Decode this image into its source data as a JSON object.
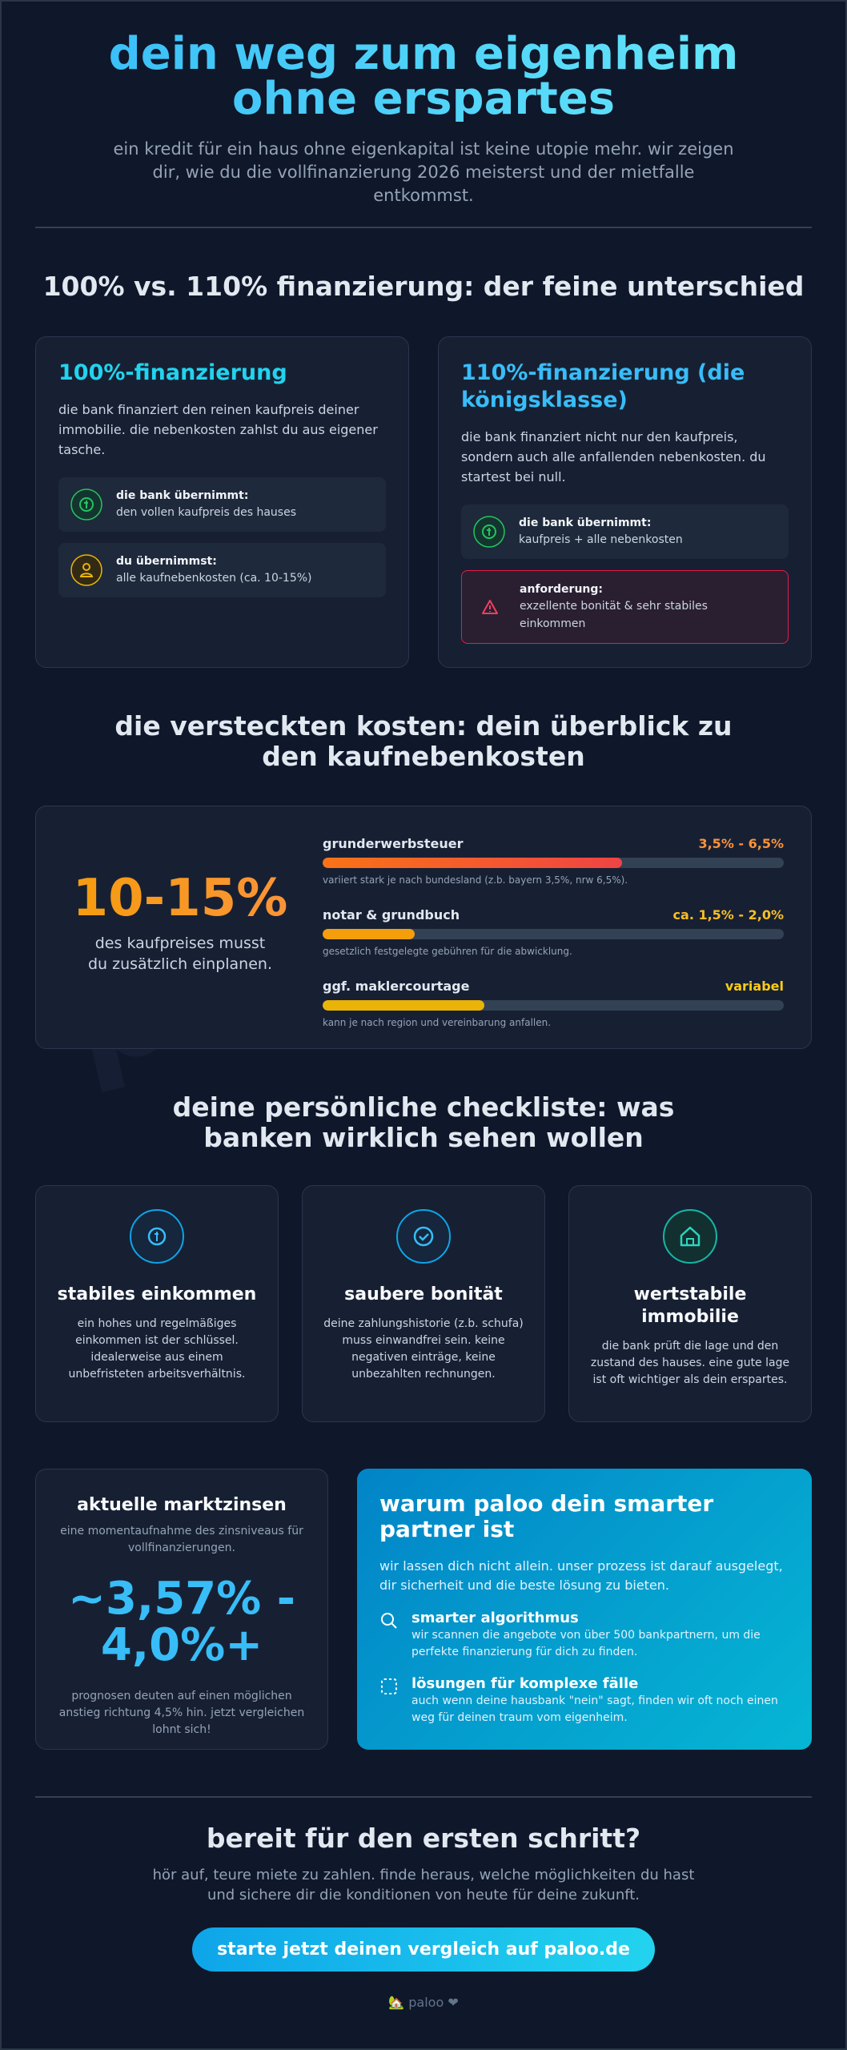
{
  "header": {
    "title": "dein weg zum eigenheim ohne erspartes",
    "subtitle": "ein kredit für ein haus ohne eigenkapital ist keine utopie mehr. wir zeigen dir, wie du die vollfinanzierung 2026 meisterst und der mietfalle entkommst."
  },
  "comparison": {
    "heading": "100% vs. 110% finanzierung: der feine unterschied",
    "cards": [
      {
        "title": "100%-finanzierung",
        "text": "die bank finanziert den reinen kaufpreis deiner immobilie. die nebenkosten zahlst du aus eigener tasche.",
        "items": [
          {
            "label": "die bank übernimmt:",
            "text": "den vollen kaufpreis des hauses"
          },
          {
            "label": "du übernimmst:",
            "text": "alle kaufnebenkosten (ca. 10-15%)"
          }
        ]
      },
      {
        "title": "110%-finanzierung (die königsklasse)",
        "text": "die bank finanziert nicht nur den kaufpreis, sondern auch alle anfallenden nebenkosten. du startest bei null.",
        "items": [
          {
            "label": "die bank übernimmt:",
            "text": "kaufpreis + alle nebenkosten"
          },
          {
            "label": "anforderung:",
            "text": "exzellente bonität & sehr stabiles einkommen"
          }
        ]
      }
    ]
  },
  "costs": {
    "heading": "die versteckten kosten: dein überblick zu den kaufnebenkosten",
    "big_value": "10-15%",
    "big_caption": "des kaufpreises musst du zusätzlich einplanen.",
    "items": [
      {
        "name": "grunderwerbsteuer",
        "range": "3,5% - 6,5%",
        "note": "variiert stark je nach bundesland (z.b. bayern 3,5%, nrw 6,5%)."
      },
      {
        "name": "notar & grundbuch",
        "range": "ca. 1,5% - 2,0%",
        "note": "gesetzlich festgelegte gebühren für die abwicklung."
      },
      {
        "name": "ggf. maklercourtage",
        "range": "variabel",
        "note": "kann je nach region und vereinbarung anfallen."
      }
    ]
  },
  "checklist": {
    "heading": "deine persönliche checkliste: was banken wirklich sehen wollen",
    "cards": [
      {
        "title": "stabiles einkommen",
        "text": "ein hohes und regelmäßiges einkommen ist der schlüssel. idealerweise aus einem unbefristeten arbeitsverhältnis."
      },
      {
        "title": "saubere bonität",
        "text": "deine zahlungshistorie (z.b. schufa) muss einwandfrei sein. keine negativen einträge, keine unbezahlten rechnungen."
      },
      {
        "title": "wertstabile immobilie",
        "text": "die bank prüft die lage und den zustand des hauses. eine gute lage ist oft wichtiger als dein erspartes."
      }
    ]
  },
  "rates": {
    "title": "aktuelle marktzinsen",
    "subtitle": "eine momentaufnahme des zinsniveaus für vollfinanzierungen.",
    "value": "~3,57% - 4,0%+",
    "note": "prognosen deuten auf einen möglichen anstieg richtung 4,5% hin. jetzt vergleichen lohnt sich!"
  },
  "why": {
    "title": "warum paloo dein smarter partner ist",
    "text": "wir lassen dich nicht allein. unser prozess ist darauf ausgelegt, dir sicherheit und die beste lösung zu bieten.",
    "features": [
      {
        "title": "smarter algorithmus",
        "text": "wir scannen die angebote von über 500 bankpartnern, um die perfekte finanzierung für dich zu finden."
      },
      {
        "title": "lösungen für komplexe fälle",
        "text": "auch wenn deine hausbank \"nein\" sagt, finden wir oft noch einen weg für deinen traum vom eigenheim."
      }
    ]
  },
  "cta": {
    "title": "bereit für den ersten schritt?",
    "text": "hör auf, teure miete zu zahlen. finde heraus, welche möglichkeiten du hast und sichere dir die konditionen von heute für deine zukunft.",
    "button": "starte jetzt deinen vergleich auf paloo.de"
  },
  "footer": "🏡 paloo ❤",
  "watermark": "paloo.de"
}
